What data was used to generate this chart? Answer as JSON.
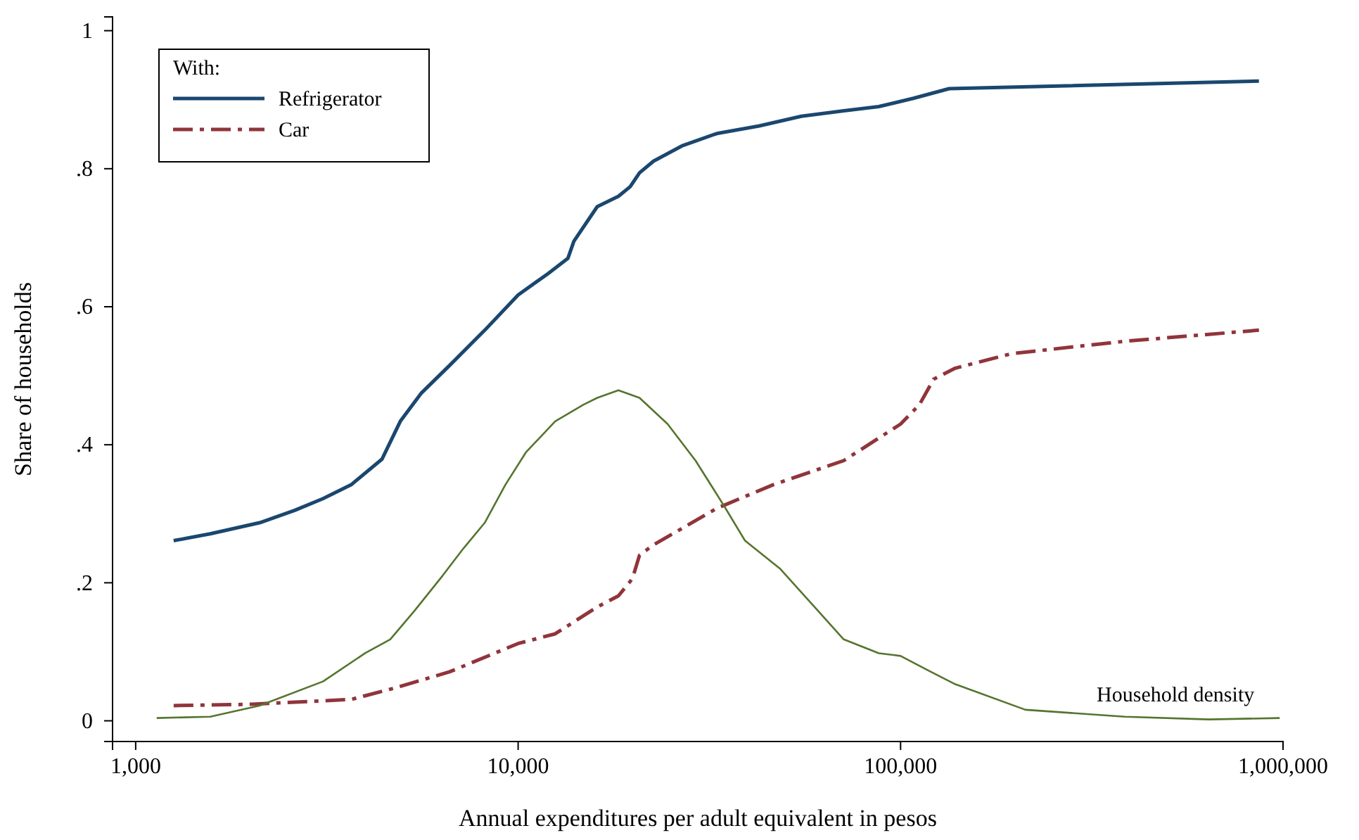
{
  "chart_data": {
    "type": "line",
    "xlabel": "Annual expenditures per adult equivalent in pesos",
    "ylabel": "Share of households",
    "legend_title": "With:",
    "legend": "top left",
    "grid": false,
    "log": "x",
    "xlim": [
      870,
      1000000
    ],
    "xticks": [
      {
        "value": 1000,
        "label": "1,000"
      },
      {
        "value": 10000,
        "label": "10,000"
      },
      {
        "value": 100000,
        "label": "100,000"
      },
      {
        "value": 1000000,
        "label": "1,000,000"
      }
    ],
    "ylim": [
      -0.03,
      1.02
    ],
    "yticks": [
      {
        "value": 0,
        "label": "0"
      },
      {
        "value": 0.2,
        "label": ".2"
      },
      {
        "value": 0.4,
        "label": ".4"
      },
      {
        "value": 0.6,
        "label": ".6"
      },
      {
        "value": 0.8,
        "label": ".8"
      },
      {
        "value": 1,
        "label": "1"
      }
    ],
    "series": [
      {
        "name": "Refrigerator",
        "color": "#1a476f",
        "line_style": "solid",
        "x": [
          1257,
          1567,
          2109,
          2606,
          3089,
          3659,
          4404,
          4920,
          5587,
          6620,
          8180,
          10000,
          11970,
          13490,
          13990,
          16100,
          18290,
          19630,
          20770,
          22600,
          26800,
          33100,
          42700,
          55000,
          71000,
          87700,
          108000,
          134000,
          865000
        ],
        "values": [
          0.261,
          0.271,
          0.287,
          0.305,
          0.322,
          0.342,
          0.379,
          0.434,
          0.475,
          0.515,
          0.566,
          0.617,
          0.648,
          0.67,
          0.695,
          0.745,
          0.76,
          0.774,
          0.794,
          0.811,
          0.833,
          0.851,
          0.862,
          0.876,
          0.884,
          0.89,
          0.902,
          0.916,
          0.927
        ]
      },
      {
        "name": "Car",
        "color": "#90353b",
        "line_style": "dashed",
        "x": [
          1257,
          2020,
          3660,
          4720,
          6620,
          10000,
          12500,
          16100,
          18290,
          19900,
          20770,
          22600,
          33100,
          46400,
          71000,
          100000,
          112000,
          122000,
          139000,
          195000,
          386000,
          865000
        ],
        "values": [
          0.022,
          0.024,
          0.031,
          0.047,
          0.071,
          0.112,
          0.126,
          0.165,
          0.181,
          0.206,
          0.24,
          0.255,
          0.308,
          0.342,
          0.377,
          0.43,
          0.458,
          0.495,
          0.511,
          0.532,
          0.55,
          0.566
        ]
      },
      {
        "name": "Household density",
        "type": "line",
        "color": "#55752f",
        "line_style": "solid",
        "x": [
          1135,
          1567,
          2109,
          3089,
          3981,
          4630,
          5350,
          6340,
          7200,
          8180,
          9260,
          10480,
          12500,
          14800,
          16100,
          18290,
          20770,
          24600,
          29100,
          34500,
          39200,
          48500,
          60000,
          71000,
          87700,
          100000,
          118000,
          139000,
          212000,
          386000,
          640000,
          980000
        ],
        "values": [
          0.004,
          0.006,
          0.022,
          0.057,
          0.098,
          0.118,
          0.159,
          0.21,
          0.25,
          0.287,
          0.342,
          0.389,
          0.434,
          0.458,
          0.468,
          0.479,
          0.468,
          0.43,
          0.377,
          0.312,
          0.261,
          0.22,
          0.163,
          0.118,
          0.098,
          0.094,
          0.073,
          0.053,
          0.016,
          0.006,
          0.002,
          0.004
        ]
      }
    ]
  }
}
